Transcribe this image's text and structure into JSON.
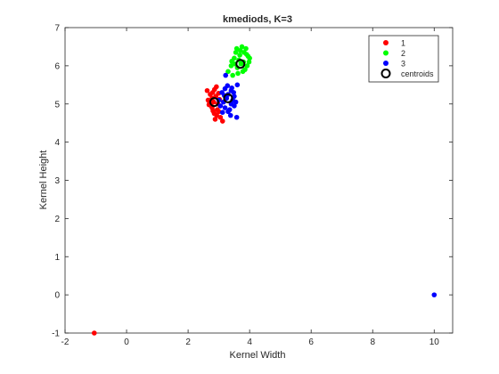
{
  "chart_data": {
    "type": "scatter",
    "title": "kmediods, K=3",
    "xlabel": "Kernel Width",
    "ylabel": "Kernel Height",
    "xlim": [
      -2,
      10.6
    ],
    "ylim": [
      -1,
      7
    ],
    "xticks": [
      -2,
      0,
      2,
      4,
      6,
      8,
      10
    ],
    "yticks": [
      -1,
      0,
      1,
      2,
      3,
      4,
      5,
      6,
      7
    ],
    "legend_position": "top-right",
    "series": [
      {
        "name": "1",
        "color": "#ff0000",
        "points": [
          [
            2.62,
            5.35
          ],
          [
            2.7,
            5.05
          ],
          [
            2.75,
            4.95
          ],
          [
            2.8,
            5.3
          ],
          [
            2.85,
            4.75
          ],
          [
            2.9,
            5.2
          ],
          [
            2.95,
            4.85
          ],
          [
            2.78,
            5.15
          ],
          [
            2.68,
            4.98
          ],
          [
            3.0,
            4.8
          ],
          [
            3.05,
            4.65
          ],
          [
            2.92,
            5.45
          ],
          [
            2.88,
            4.6
          ],
          [
            2.72,
            5.25
          ],
          [
            2.83,
            5.05
          ],
          [
            2.97,
            5.0
          ],
          [
            2.65,
            5.1
          ],
          [
            3.02,
            5.12
          ],
          [
            2.78,
            4.9
          ],
          [
            2.93,
            4.7
          ],
          [
            3.12,
            4.55
          ],
          [
            2.86,
            5.38
          ],
          [
            2.74,
            5.0
          ],
          [
            2.99,
            5.28
          ],
          [
            2.81,
            4.82
          ],
          [
            -1.05,
            -1.0
          ]
        ]
      },
      {
        "name": "2",
        "color": "#00ff00",
        "points": [
          [
            3.3,
            5.85
          ],
          [
            3.4,
            6.0
          ],
          [
            3.5,
            6.2
          ],
          [
            3.6,
            5.95
          ],
          [
            3.7,
            6.4
          ],
          [
            3.8,
            6.1
          ],
          [
            3.9,
            6.3
          ],
          [
            3.75,
            6.5
          ],
          [
            3.85,
            5.9
          ],
          [
            3.95,
            6.25
          ],
          [
            3.65,
            6.15
          ],
          [
            3.55,
            6.35
          ],
          [
            3.45,
            5.75
          ],
          [
            3.72,
            6.05
          ],
          [
            3.88,
            6.45
          ],
          [
            4.0,
            6.2
          ],
          [
            3.62,
            5.8
          ],
          [
            3.52,
            6.05
          ],
          [
            3.82,
            6.35
          ],
          [
            3.92,
            6.0
          ],
          [
            3.68,
            6.28
          ],
          [
            3.42,
            6.12
          ],
          [
            3.78,
            5.85
          ],
          [
            3.58,
            6.45
          ],
          [
            3.98,
            6.1
          ]
        ]
      },
      {
        "name": "3",
        "color": "#0000ff",
        "points": [
          [
            3.0,
            5.1
          ],
          [
            3.1,
            5.3
          ],
          [
            3.2,
            4.9
          ],
          [
            3.3,
            5.25
          ],
          [
            3.4,
            5.0
          ],
          [
            3.5,
            5.2
          ],
          [
            3.2,
            5.4
          ],
          [
            3.3,
            4.8
          ],
          [
            3.4,
            5.35
          ],
          [
            3.5,
            4.95
          ],
          [
            3.15,
            5.05
          ],
          [
            3.25,
            5.15
          ],
          [
            3.35,
            4.85
          ],
          [
            3.45,
            5.1
          ],
          [
            3.05,
            4.95
          ],
          [
            3.55,
            5.05
          ],
          [
            3.28,
            5.48
          ],
          [
            3.38,
            4.7
          ],
          [
            3.18,
            5.22
          ],
          [
            3.48,
            5.3
          ],
          [
            3.58,
            4.65
          ],
          [
            3.22,
            5.75
          ],
          [
            3.6,
            5.5
          ],
          [
            3.12,
            4.78
          ],
          [
            3.42,
            5.42
          ],
          [
            10.0,
            0.0
          ]
        ]
      }
    ],
    "centroids": {
      "name": "centroids",
      "points": [
        [
          2.85,
          5.05
        ],
        [
          3.7,
          6.05
        ],
        [
          3.3,
          5.15
        ]
      ]
    }
  }
}
